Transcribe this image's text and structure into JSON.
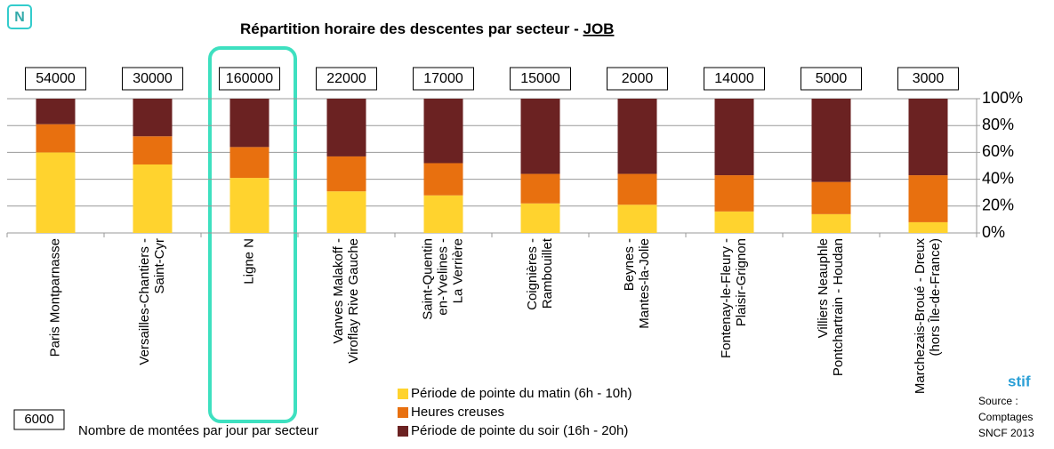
{
  "logo": "N",
  "chart_data": {
    "type": "stacked_bar_percent",
    "title": "Répartition horaire des descentes par secteur -",
    "title_highlight": "JOB",
    "categories": [
      "Paris Montparnasse",
      "Versailles-Chantiers -\nSaint-Cyr",
      "Ligne N",
      "Vanves Malakoff -\nViroflay Rive Gauche",
      "Saint-Quentin\nen-Yvelines -\nLa Verrière",
      "Coignières -\nRambouillet",
      "Beynes -\nMantes-la-Jolie",
      "Fontenay-le-Fleury -\nPlaisir-Grignon",
      "Villiers Neauphle\nPontchartrain - Houdan",
      "Marchezais-Broué - Dreux\n(hors Île-de-France)"
    ],
    "totals": [
      54000,
      30000,
      160000,
      22000,
      17000,
      15000,
      2000,
      14000,
      5000,
      3000
    ],
    "series": [
      {
        "name": "Période de pointe du matin (6h - 10h)",
        "color": "#FFD32E",
        "values": [
          60,
          51,
          41,
          31,
          28,
          22,
          21,
          16,
          14,
          8
        ]
      },
      {
        "name": "Heures creuses",
        "color": "#E8700F",
        "values": [
          21,
          21,
          23,
          26,
          24,
          22,
          23,
          27,
          24,
          35
        ]
      },
      {
        "name": "Période de pointe du soir (16h - 20h)",
        "color": "#6B2222",
        "values": [
          19,
          28,
          36,
          43,
          48,
          56,
          56,
          57,
          62,
          57
        ]
      }
    ],
    "ylim": [
      0,
      100
    ],
    "yticks": [
      {
        "value": 0,
        "label": "0%"
      },
      {
        "value": 20,
        "label": "20%"
      },
      {
        "value": 40,
        "label": "40%"
      },
      {
        "value": 60,
        "label": "60%"
      },
      {
        "value": 80,
        "label": "80%"
      },
      {
        "value": 100,
        "label": "100%"
      }
    ],
    "grid": true,
    "totals_note": {
      "example": "6000",
      "text": "Nombre de montées par jour par secteur"
    }
  },
  "source": {
    "logo": "stif",
    "lines": [
      "Source :",
      "Comptages",
      "SNCF 2013"
    ]
  }
}
